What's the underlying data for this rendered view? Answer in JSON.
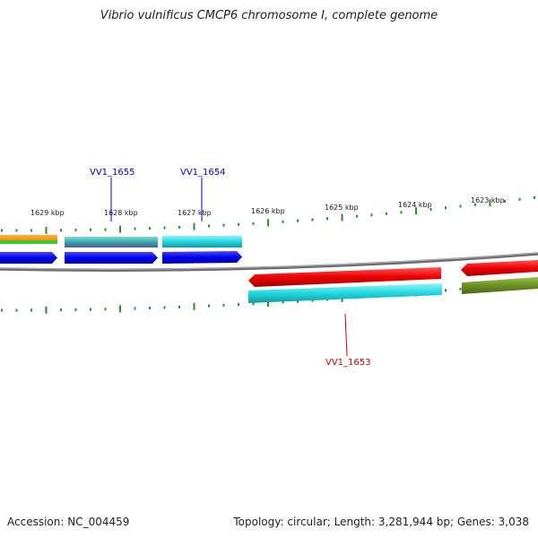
{
  "title": "Vibrio vulnificus CMCP6 chromosome I, complete genome",
  "footer": {
    "accession": "Accession: NC_004459",
    "topology": "Topology: circular; Length: 3,281,944 bp; Genes: 3,038"
  },
  "ruler_labels": [
    "1629 kbp",
    "1628 kbp",
    "1627 kbp",
    "1626 kbp",
    "1625 kbp",
    "1624 kbp",
    "1623 kbp"
  ],
  "gene_labels": [
    {
      "text": "VV1_1655",
      "color": "#0000cc"
    },
    {
      "text": "VV1_1654",
      "color": "#0000cc"
    },
    {
      "text": "VV1_1653",
      "color": "#cc0000"
    }
  ],
  "colors": {
    "backbone": "#808080",
    "tick": "#2e8b2e",
    "forward_cds": "#0000ee",
    "reverse_cds": "#ee0000",
    "cog_cyan": "#20c8d0",
    "cog_teal": "#3aa6aa",
    "cog_olive": "#6b8e23",
    "cog_orange": "#ff8c00",
    "cog_green": "#33cc33"
  }
}
